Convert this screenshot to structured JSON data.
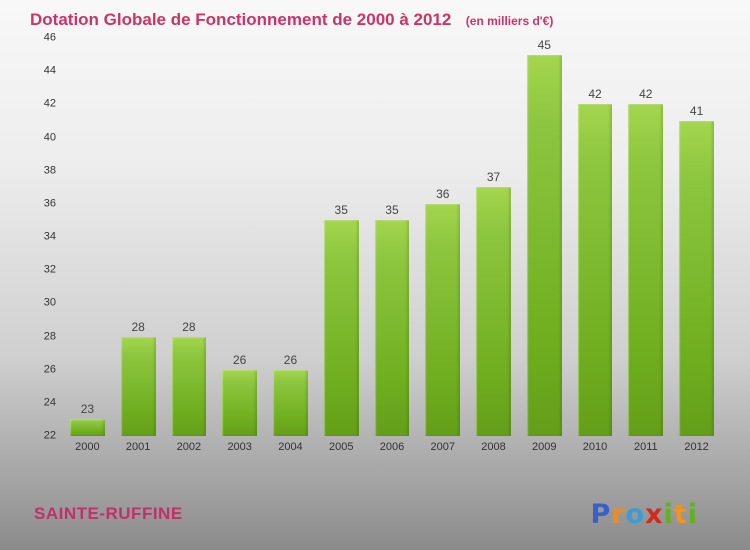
{
  "title": "Dotation Globale de Fonctionnement de 2000 à 2012",
  "subtitle": "(en milliers d'€)",
  "footer": {
    "commune": "SAINTE-RUFFINE"
  },
  "logo": {
    "name": "Proxiti",
    "letters": [
      {
        "ch": "P",
        "color": "#3a5fc8"
      },
      {
        "ch": "r",
        "color": "#f08c1e"
      },
      {
        "ch": "o",
        "color": "#3a9bd5"
      },
      {
        "ch": "x",
        "color": "#d42a1e"
      },
      {
        "ch": "i",
        "color": "#62b121"
      },
      {
        "ch": "t",
        "color": "#f0941e"
      },
      {
        "ch": "i",
        "color": "#62b121"
      }
    ]
  },
  "chart_data": {
    "type": "bar",
    "title": "Dotation Globale de Fonctionnement de 2000 à 2012",
    "subtitle": "(en milliers d'€)",
    "categories": [
      "2000",
      "2001",
      "2002",
      "2003",
      "2004",
      "2005",
      "2006",
      "2007",
      "2008",
      "2009",
      "2010",
      "2011",
      "2012"
    ],
    "values": [
      23,
      28,
      28,
      26,
      26,
      35,
      35,
      36,
      37,
      45,
      42,
      42,
      41
    ],
    "xlabel": "",
    "ylabel": "",
    "ylim": [
      22,
      46
    ],
    "ytick_step": 2,
    "grid": false,
    "legend": "none",
    "bar_color_top": "#8dc63f",
    "bar_color_bottom": "#649e19",
    "accent_color": "#cc3368"
  }
}
